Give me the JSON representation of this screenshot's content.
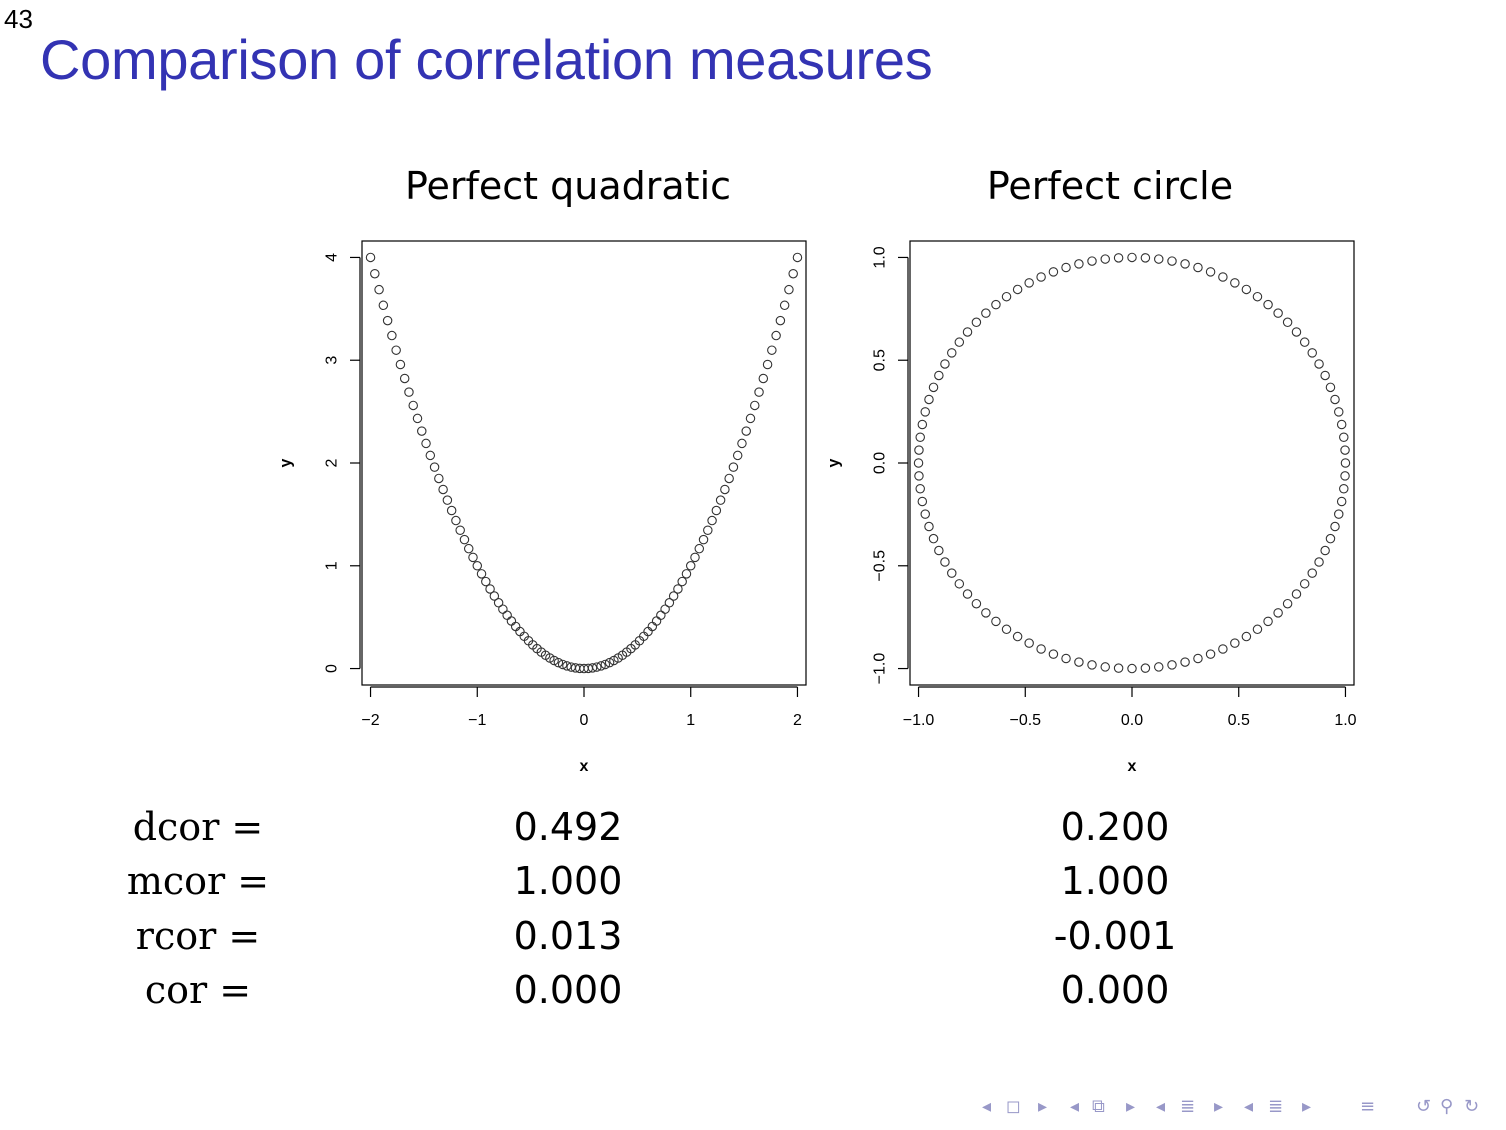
{
  "slide": {
    "number": "43",
    "title": "Comparison of correlation measures"
  },
  "colors": {
    "title": "#3333b3",
    "points": "#333333",
    "nav": "#9898c8"
  },
  "chart_data": [
    {
      "type": "scatter",
      "title": "Perfect quadratic",
      "xlabel": "x",
      "ylabel": "y",
      "xlim": [
        -2.08,
        2.08
      ],
      "ylim": [
        -0.16,
        4.16
      ],
      "xticks": [
        -2,
        -1,
        0,
        1,
        2
      ],
      "xtick_labels": [
        "−2",
        "−1",
        "0",
        "1",
        "2"
      ],
      "yticks": [
        0,
        1,
        2,
        3,
        4
      ],
      "ytick_labels": [
        "0",
        "1",
        "2",
        "3",
        "4"
      ],
      "relation": "y = x^2",
      "x_range": [
        -2,
        2
      ],
      "n_points": 101,
      "marker": "open-circle",
      "grid": false
    },
    {
      "type": "scatter",
      "title": "Perfect circle",
      "xlabel": "x",
      "ylabel": "y",
      "xlim": [
        -1.04,
        1.04
      ],
      "ylim": [
        -1.08,
        1.08
      ],
      "xticks": [
        -1.0,
        -0.5,
        0.0,
        0.5,
        1.0
      ],
      "xtick_labels": [
        "−1.0",
        "−0.5",
        "0.0",
        "0.5",
        "1.0"
      ],
      "yticks": [
        -1.0,
        -0.5,
        0.0,
        0.5,
        1.0
      ],
      "ytick_labels": [
        "−1.0",
        "−0.5",
        "0.0",
        "0.5",
        "1.0"
      ],
      "relation": "x^2 + y^2 = 1",
      "n_points": 100,
      "marker": "open-circle",
      "grid": false
    }
  ],
  "stats": {
    "rows": [
      {
        "label": "dcor =",
        "quadratic": "0.492",
        "circle": "0.200"
      },
      {
        "label": "mcor =",
        "quadratic": "1.000",
        "circle": "1.000"
      },
      {
        "label": "rcor =",
        "quadratic": "0.013",
        "circle": "-0.001"
      },
      {
        "label": "cor =",
        "quadratic": "0.000",
        "circle": "0.000"
      }
    ]
  },
  "nav": {
    "icons": [
      "nav-prev-arrow-icon",
      "nav-frame-icon",
      "nav-next-arrow-icon",
      "nav-prev-arrow-icon",
      "nav-subsection-icon",
      "nav-next-arrow-icon",
      "nav-prev-arrow-icon",
      "nav-section-icon",
      "nav-next-arrow-icon",
      "nav-prev-arrow-icon",
      "nav-doc-icon",
      "nav-next-arrow-icon",
      "nav-align-icon",
      "nav-undo-icon",
      "nav-search-icon",
      "nav-redo-icon"
    ]
  }
}
